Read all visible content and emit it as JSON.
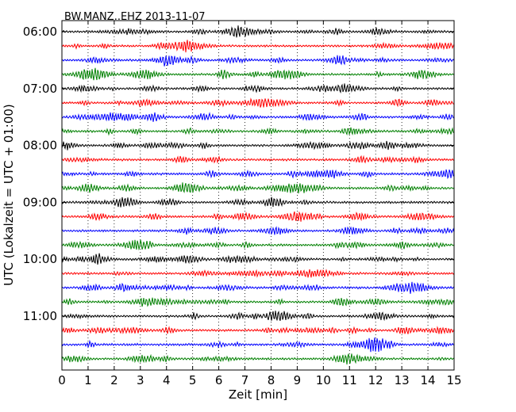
{
  "chart_data": {
    "type": "line",
    "title": "BW.MANZ..EHZ 2013-11-07",
    "xlabel": "Zeit  [min]",
    "ylabel": "UTC (Lokalzeit = UTC + 01:00)",
    "xlim": [
      0,
      15
    ],
    "x_ticks": [
      "0",
      "1",
      "2",
      "3",
      "4",
      "5",
      "6",
      "7",
      "8",
      "9",
      "10",
      "11",
      "12",
      "13",
      "14",
      "15"
    ],
    "y_tick_labels": [
      "06:00",
      "07:00",
      "08:00",
      "09:00",
      "10:00",
      "11:00"
    ],
    "grid": "vertical dotted",
    "trace_colors": [
      "#000000",
      "#ff0000",
      "#0000ff",
      "#008000"
    ],
    "series": [
      {
        "start": "06:00",
        "color": "#000000"
      },
      {
        "start": "06:15",
        "color": "#ff0000"
      },
      {
        "start": "06:30",
        "color": "#0000ff"
      },
      {
        "start": "06:45",
        "color": "#008000"
      },
      {
        "start": "07:00",
        "color": "#000000"
      },
      {
        "start": "07:15",
        "color": "#ff0000"
      },
      {
        "start": "07:30",
        "color": "#0000ff"
      },
      {
        "start": "07:45",
        "color": "#008000"
      },
      {
        "start": "08:00",
        "color": "#000000"
      },
      {
        "start": "08:15",
        "color": "#ff0000"
      },
      {
        "start": "08:30",
        "color": "#0000ff"
      },
      {
        "start": "08:45",
        "color": "#008000"
      },
      {
        "start": "09:00",
        "color": "#000000"
      },
      {
        "start": "09:15",
        "color": "#ff0000"
      },
      {
        "start": "09:30",
        "color": "#0000ff"
      },
      {
        "start": "09:45",
        "color": "#008000"
      },
      {
        "start": "10:00",
        "color": "#000000"
      },
      {
        "start": "10:15",
        "color": "#ff0000"
      },
      {
        "start": "10:30",
        "color": "#0000ff"
      },
      {
        "start": "10:45",
        "color": "#008000"
      },
      {
        "start": "11:00",
        "color": "#000000"
      },
      {
        "start": "11:15",
        "color": "#ff0000"
      },
      {
        "start": "11:30",
        "color": "#0000ff"
      },
      {
        "start": "11:45",
        "color": "#008000"
      }
    ]
  }
}
